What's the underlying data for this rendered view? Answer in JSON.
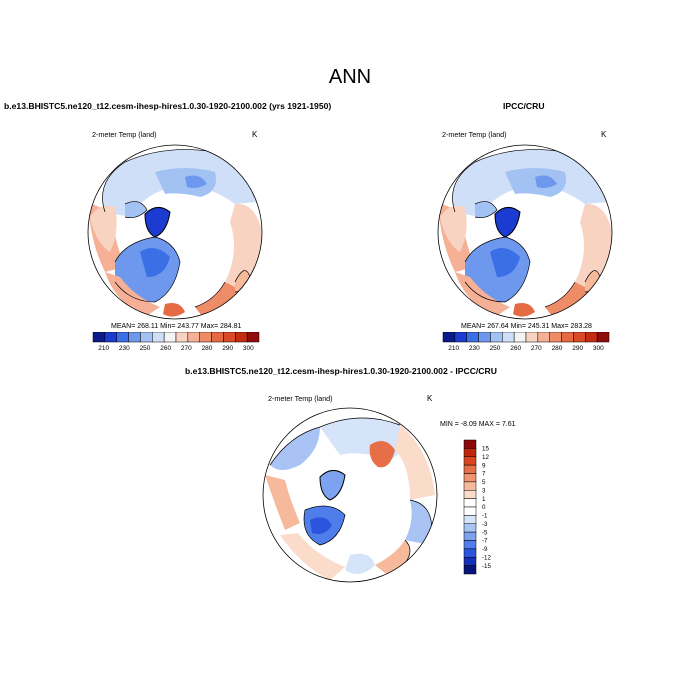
{
  "page": {
    "title": "ANN"
  },
  "panels": [
    {
      "case_title": "b.e13.BHISTC5.ne120_t12.cesm-ihesp-hires1.0.30-1920-2100.002 (yrs 1921-1950)",
      "variable": "2-meter Temp (land)",
      "units": "K",
      "stats_text": "MEAN= 268.11  Min= 243.77  Max= 284.81",
      "colorbar_labels": [
        "210",
        "230",
        "250",
        "260",
        "270",
        "280",
        "290",
        "300"
      ]
    },
    {
      "case_title": "IPCC/CRU",
      "variable": "2-meter Temp (land)",
      "units": "K",
      "stats_text": "MEAN= 267.64  Min= 245.31  Max= 283.28",
      "colorbar_labels": [
        "210",
        "230",
        "250",
        "260",
        "270",
        "280",
        "290",
        "300"
      ]
    },
    {
      "case_title": "b.e13.BHISTC5.ne120_t12.cesm-ihesp-hires1.0.30-1920-2100.002 - IPCC/CRU",
      "variable": "2-meter Temp (land)",
      "units": "K",
      "stats_text": "MIN =  -8.09 MAX =   7.61",
      "colorbar_labels": [
        "15",
        "12",
        "9",
        "7",
        "5",
        "3",
        "1",
        "0",
        "-1",
        "-3",
        "-5",
        "-7",
        "-9",
        "-12",
        "-15"
      ]
    }
  ],
  "colors": {
    "absolute_scale": [
      "#0a1b8c",
      "#1c3bd1",
      "#3a6fe6",
      "#6d98ee",
      "#a3c2f4",
      "#cfdff8",
      "#f3f3f3",
      "#f8d3c2",
      "#f5b096",
      "#ef8c68",
      "#e56a44",
      "#d94a26",
      "#c42d12",
      "#8f0d0a"
    ],
    "difference_scale": [
      "#07147a",
      "#1530b8",
      "#2a55dc",
      "#4f7de9",
      "#7da2ef",
      "#a9c4f4",
      "#d6e4fa",
      "#ffffff",
      "#ffffff",
      "#fbdccb",
      "#f6b99c",
      "#f09471",
      "#e66f47",
      "#d8461f",
      "#bf260c",
      "#8a0808"
    ]
  }
}
